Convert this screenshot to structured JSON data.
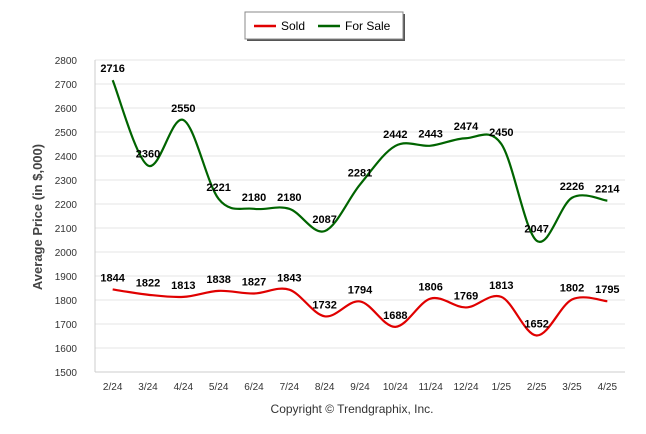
{
  "chart_data": {
    "type": "line",
    "categories": [
      "2/24",
      "3/24",
      "4/24",
      "5/24",
      "6/24",
      "7/24",
      "8/24",
      "9/24",
      "10/24",
      "11/24",
      "12/24",
      "1/25",
      "2/25",
      "3/25",
      "4/25"
    ],
    "series": [
      {
        "name": "Sold",
        "color": "#e00000",
        "values": [
          1844,
          1822,
          1813,
          1838,
          1827,
          1843,
          1732,
          1794,
          1688,
          1806,
          1769,
          1813,
          1652,
          1802,
          1795
        ]
      },
      {
        "name": "For Sale",
        "color": "#006400",
        "values": [
          2716,
          2360,
          2550,
          2221,
          2180,
          2180,
          2087,
          2281,
          2442,
          2443,
          2474,
          2450,
          2047,
          2226,
          2214
        ]
      }
    ],
    "ylabel": "Average Price (in $,000)",
    "xlabel": "",
    "ylim": [
      1500,
      2800
    ],
    "yticks": [
      1500,
      1600,
      1700,
      1800,
      1900,
      2000,
      2100,
      2200,
      2300,
      2400,
      2500,
      2600,
      2700,
      2800
    ],
    "grid": true,
    "legend_position": "top-center"
  },
  "footer": {
    "copyright": "Copyright © Trendgraphix, Inc."
  }
}
